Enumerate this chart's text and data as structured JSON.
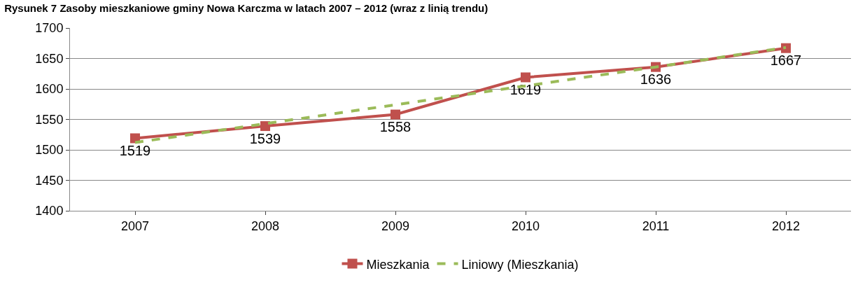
{
  "chart_data": {
    "type": "line",
    "title": "Rysunek 7 Zasoby mieszkaniowe gminy Nowa Karczma w latach 2007 – 2012 (wraz z linią trendu)",
    "categories": [
      "2007",
      "2008",
      "2009",
      "2010",
      "2011",
      "2012"
    ],
    "series": [
      {
        "name": "Mieszkania",
        "color": "#c0504d",
        "values": [
          1519,
          1539,
          1558,
          1619,
          1636,
          1667
        ],
        "marker": "square",
        "line_style": "solid",
        "value_labels": [
          "1519",
          "1539",
          "1558",
          "1619",
          "1636",
          "1667"
        ]
      },
      {
        "name": "Liniowy (Mieszkania)",
        "color": "#9bbb59",
        "values": [
          1512,
          1543,
          1574,
          1605,
          1636,
          1668
        ],
        "marker": "none",
        "line_style": "dashed"
      }
    ],
    "ylim": [
      1400,
      1700
    ],
    "yticks": [
      1400,
      1450,
      1500,
      1550,
      1600,
      1650,
      1700
    ],
    "grid": "y",
    "legend": "bottom"
  }
}
